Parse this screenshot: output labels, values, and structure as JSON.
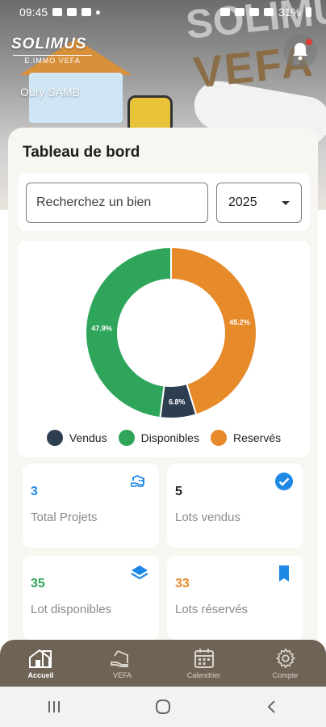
{
  "status_bar": {
    "time": "09:45",
    "battery": "31%"
  },
  "header": {
    "brand_name": "SOLIMUS",
    "brand_sub": "E.IMMO VEFA",
    "user_name": "Oury SAMB",
    "bg_text_vefa": "VEFA",
    "bg_text_solimus": "SOLIMUS"
  },
  "dashboard": {
    "title": "Tableau de bord",
    "search_placeholder": "Recherchez un bien",
    "year_selected": "2025"
  },
  "chart_data": {
    "type": "pie",
    "donut": true,
    "categories": [
      "Vendus",
      "Disponibles",
      "Reservés"
    ],
    "values": [
      6.8,
      47.9,
      45.2
    ],
    "data_labels": [
      "6.8%",
      "47.9%",
      "45.2%"
    ],
    "colors": [
      "#2d3e50",
      "#2fa55b",
      "#e68a2a"
    ],
    "legend_position": "bottom"
  },
  "stats": [
    {
      "value": "3",
      "label": "Total Projets",
      "color": "#1e88e5",
      "icon": "building-hand-icon"
    },
    {
      "value": "5",
      "label": "Lots vendus",
      "color": "#1c1c1c",
      "icon": "check-circle-icon"
    },
    {
      "value": "35",
      "label": "Lot disponibles",
      "color": "#2fa55b",
      "icon": "layers-icon"
    },
    {
      "value": "33",
      "label": "Lots réservés",
      "color": "#e68a2a",
      "icon": "bookmark-icon"
    }
  ],
  "nav": [
    {
      "label": "Accueil",
      "icon": "home-icon",
      "active": true
    },
    {
      "label": "VEFA",
      "icon": "vefa-icon",
      "active": false
    },
    {
      "label": "Calendrier",
      "icon": "calendar-icon",
      "active": false
    },
    {
      "label": "Compte",
      "icon": "settings-icon",
      "active": false
    }
  ]
}
